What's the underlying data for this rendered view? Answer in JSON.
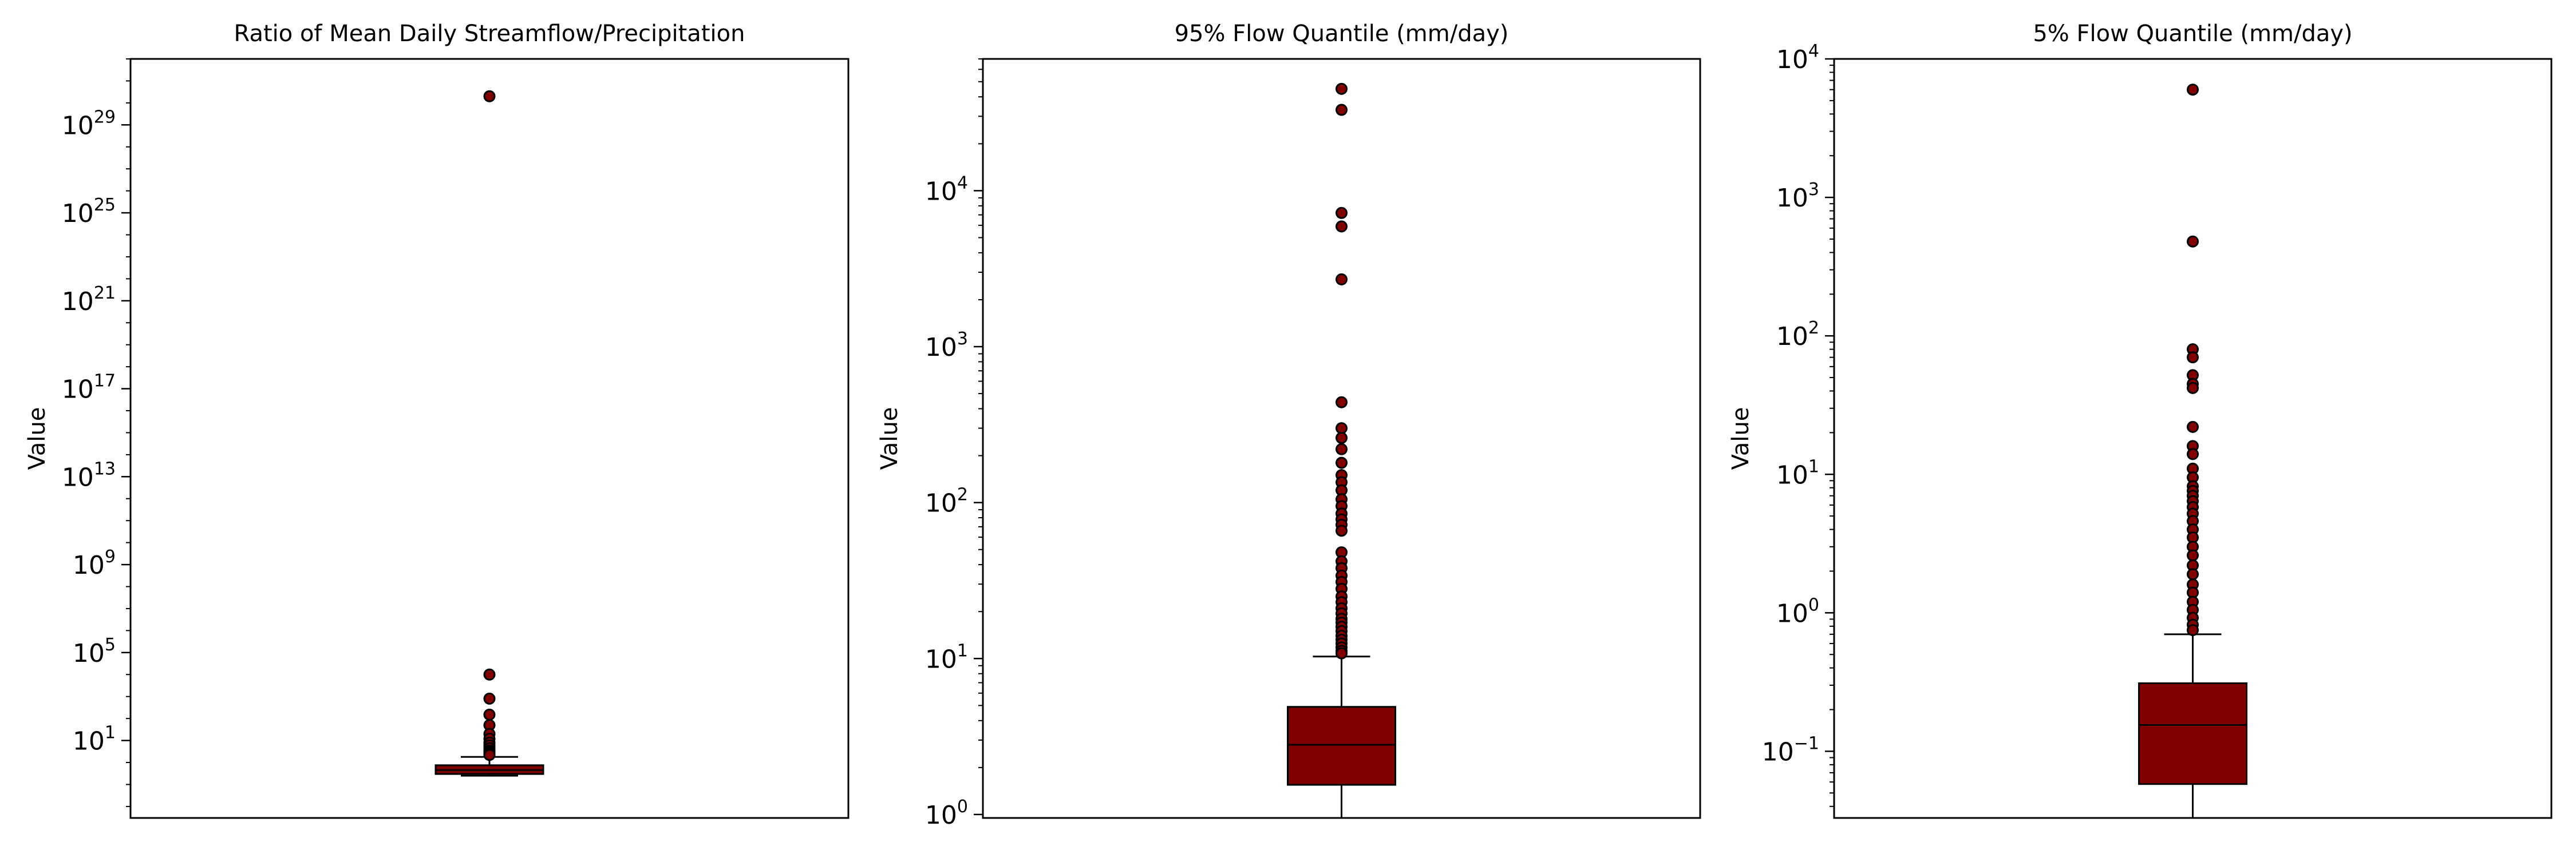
{
  "chart_data": [
    {
      "type": "box",
      "title": "Ratio of Mean Daily Streamflow/Precipitation",
      "ylabel": "Value",
      "yscale": "log",
      "ylim": [
        0.003,
        1e+32
      ],
      "yticks": [
        {
          "value": 10,
          "base": "10",
          "exp": "1"
        },
        {
          "value": 100000.0,
          "base": "10",
          "exp": "5"
        },
        {
          "value": 1000000000.0,
          "base": "10",
          "exp": "9"
        },
        {
          "value": 10000000000000.0,
          "base": "10",
          "exp": "13"
        },
        {
          "value": 1e+17,
          "base": "10",
          "exp": "17"
        },
        {
          "value": 1e+21,
          "base": "10",
          "exp": "21"
        },
        {
          "value": 1e+25,
          "base": "10",
          "exp": "25"
        },
        {
          "value": 1e+29,
          "base": "10",
          "exp": "29"
        }
      ],
      "box": {
        "whisker_low": 0.25,
        "q1": 0.3,
        "median": 0.45,
        "q3": 0.75,
        "whisker_high": 1.8
      },
      "outliers": [
        2e+30,
        10000.0,
        800,
        150,
        50,
        20,
        12,
        8,
        6,
        4.5,
        3.5,
        3.0,
        2.5,
        2.2
      ]
    },
    {
      "type": "box",
      "title": "95% Flow Quantile (mm/day)",
      "ylabel": "Value",
      "yscale": "log",
      "ylim": [
        0.95,
        70000
      ],
      "yticks": [
        {
          "value": 1,
          "base": "10",
          "exp": "0"
        },
        {
          "value": 10,
          "base": "10",
          "exp": "1"
        },
        {
          "value": 100,
          "base": "10",
          "exp": "2"
        },
        {
          "value": 1000,
          "base": "10",
          "exp": "3"
        },
        {
          "value": 10000,
          "base": "10",
          "exp": "4"
        }
      ],
      "box": {
        "whisker_low": 0.95,
        "q1": 1.55,
        "median": 2.8,
        "q3": 4.9,
        "whisker_high": 10.3
      },
      "outliers": [
        45000,
        33000,
        7200,
        5900,
        2700,
        440,
        300,
        260,
        220,
        180,
        150,
        135,
        120,
        105,
        95,
        85,
        78,
        72,
        66,
        48,
        42,
        38,
        34,
        31,
        28,
        25,
        23,
        21,
        19.5,
        18,
        17,
        16,
        15,
        14,
        13.2,
        12.5,
        11.8,
        11.2,
        10.8
      ]
    },
    {
      "type": "box",
      "title": "5% Flow Quantile (mm/day)",
      "ylabel": "Value",
      "yscale": "log",
      "ylim": [
        0.033,
        10000
      ],
      "yticks": [
        {
          "value": 0.1,
          "base": "10",
          "exp": "−1"
        },
        {
          "value": 1,
          "base": "10",
          "exp": "0"
        },
        {
          "value": 10,
          "base": "10",
          "exp": "1"
        },
        {
          "value": 100,
          "base": "10",
          "exp": "2"
        },
        {
          "value": 1000,
          "base": "10",
          "exp": "3"
        },
        {
          "value": 10000,
          "base": "10",
          "exp": "4"
        }
      ],
      "box": {
        "whisker_low": 0.033,
        "q1": 0.058,
        "median": 0.155,
        "q3": 0.31,
        "whisker_high": 0.7
      },
      "outliers": [
        6000,
        480,
        80,
        70,
        52,
        45,
        42,
        22,
        16,
        14,
        11,
        9.5,
        8.2,
        7.6,
        7.0,
        6.4,
        5.8,
        5.2,
        4.6,
        4.0,
        3.5,
        3.0,
        2.6,
        2.2,
        1.9,
        1.6,
        1.4,
        1.2,
        1.05,
        0.92,
        0.82,
        0.75
      ]
    }
  ],
  "colors": {
    "box_fill": "#800000",
    "line": "#000000",
    "outlier_fill": "#800000"
  }
}
